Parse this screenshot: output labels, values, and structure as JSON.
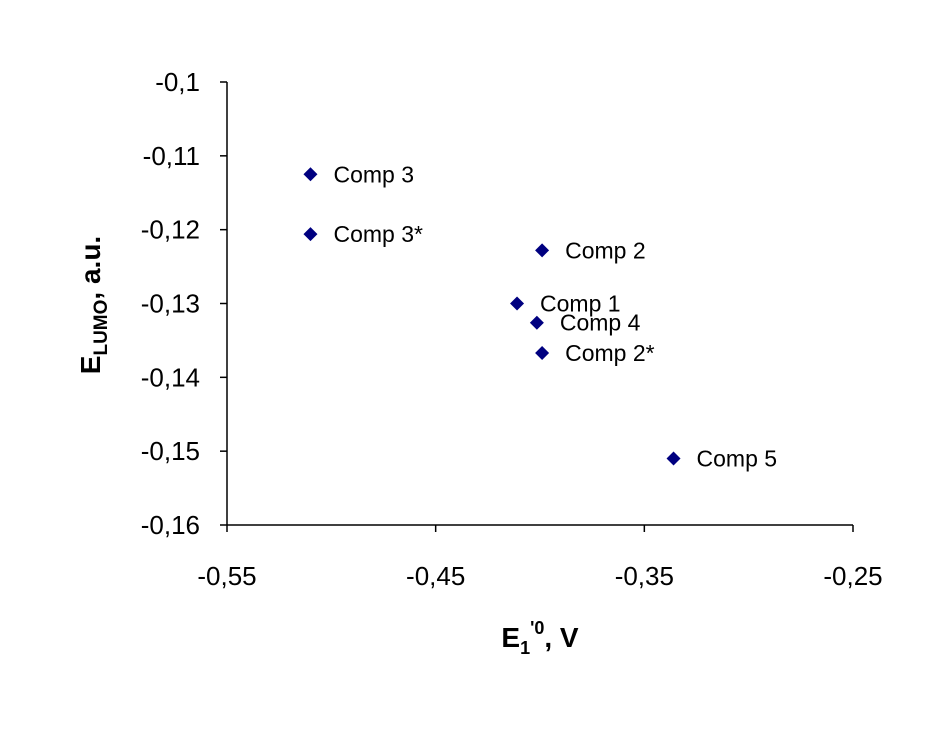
{
  "chart_data": {
    "type": "scatter",
    "xlabel": {
      "main": "E",
      "sub": "1",
      "sup": "'0",
      "rest": ", V"
    },
    "ylabel": {
      "main": "E",
      "sub": "LUMO",
      "rest": ", a.u."
    },
    "xlim": [
      -0.55,
      -0.25
    ],
    "ylim": [
      -0.16,
      -0.1
    ],
    "xticks": [
      -0.55,
      -0.45,
      -0.35,
      -0.25
    ],
    "xtick_labels": [
      "-0,55",
      "-0,45",
      "-0,35",
      "-0,25"
    ],
    "yticks": [
      -0.1,
      -0.11,
      -0.12,
      -0.13,
      -0.14,
      -0.15,
      -0.16
    ],
    "ytick_labels": [
      "-0,1",
      "-0,11",
      "-0,12",
      "-0,13",
      "-0,14",
      "-0,15",
      "-0,16"
    ],
    "grid": false,
    "marker_color": "#000080",
    "points": [
      {
        "label": "Comp 3",
        "x": -0.51,
        "y": -0.1125
      },
      {
        "label": "Comp 3*",
        "x": -0.51,
        "y": -0.1206
      },
      {
        "label": "Comp 2",
        "x": -0.399,
        "y": -0.1228
      },
      {
        "label": "Comp 1",
        "x": -0.411,
        "y": -0.13
      },
      {
        "label": "Comp 4",
        "x": -0.4015,
        "y": -0.1326
      },
      {
        "label": "Comp 2*",
        "x": -0.399,
        "y": -0.1367
      },
      {
        "label": "Comp 5",
        "x": -0.336,
        "y": -0.151
      }
    ]
  }
}
